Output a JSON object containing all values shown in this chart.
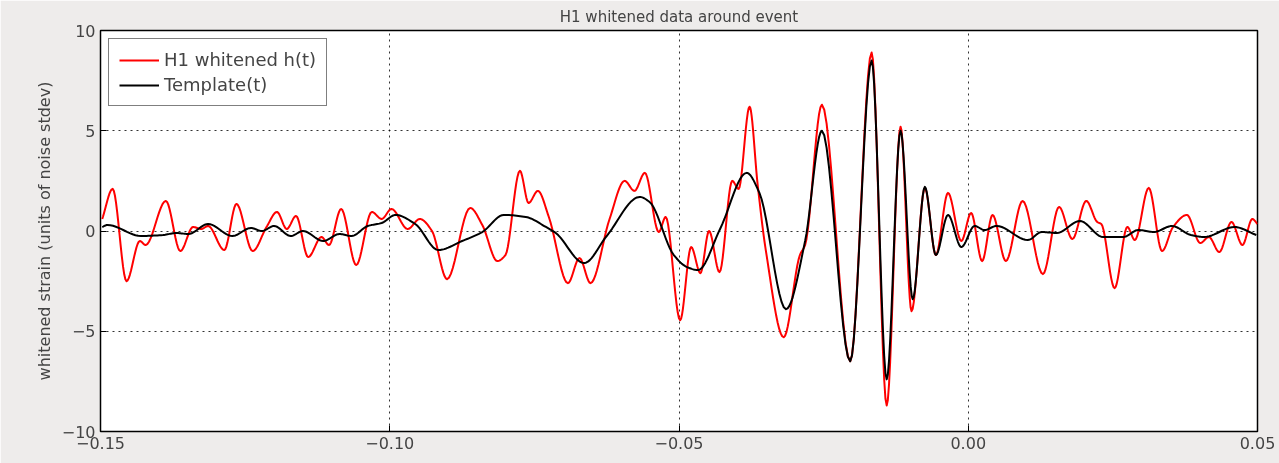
{
  "chart_data": {
    "type": "line",
    "title": "H1 whitened data around event",
    "ylabel": "whitened strain (units of noise stdev)",
    "xlim": [
      -0.15,
      0.05
    ],
    "ylim": [
      -10,
      10
    ],
    "xticks": [
      {
        "value": -0.15,
        "label": "−0.15"
      },
      {
        "value": -0.1,
        "label": "−0.10"
      },
      {
        "value": -0.05,
        "label": "−0.05"
      },
      {
        "value": 0,
        "label": "0.00"
      },
      {
        "value": 0.05,
        "label": "0.05"
      }
    ],
    "yticks": [
      {
        "value": -10,
        "label": "−10"
      },
      {
        "value": -5,
        "label": "−5"
      },
      0,
      5,
      10
    ],
    "grid": true,
    "legend": "top left",
    "line_style": "solid",
    "series": [
      {
        "name": "H1 whitened h(t)",
        "color": "#ff0000",
        "x": [
          -0.1497,
          -0.1479,
          -0.1455,
          -0.1432,
          -0.1422,
          -0.1387,
          -0.1362,
          -0.134,
          -0.1326,
          -0.1314,
          -0.1286,
          -0.1265,
          -0.1237,
          -0.1213,
          -0.1195,
          -0.1178,
          -0.1162,
          -0.1141,
          -0.1118,
          -0.1105,
          -0.1084,
          -0.1058,
          -0.1031,
          -0.1014,
          -0.0997,
          -0.0969,
          -0.0948,
          -0.0927,
          -0.0901,
          -0.0861,
          -0.084,
          -0.0814,
          -0.08,
          -0.0775,
          -0.076,
          -0.0744,
          -0.0725,
          -0.0692,
          -0.0672,
          -0.0653,
          -0.062,
          -0.0594,
          -0.0577,
          -0.0559,
          -0.0535,
          -0.0523,
          -0.0498,
          -0.0479,
          -0.0463,
          -0.0448,
          -0.043,
          -0.0408,
          -0.0397,
          -0.0378,
          -0.0364,
          -0.035,
          -0.0319,
          -0.0291,
          -0.0282,
          -0.0253,
          -0.0204,
          -0.0167,
          -0.0141,
          -0.0117,
          -0.0098,
          -0.0075,
          -0.0056,
          -0.0035,
          -0.0012,
          0.0005,
          0.0024,
          0.0042,
          0.0065,
          0.0094,
          0.0129,
          0.0157,
          0.018,
          0.0204,
          0.0223,
          0.023,
          0.0253,
          0.0275,
          0.0288,
          0.0312,
          0.0335,
          0.0354,
          0.0378,
          0.0401,
          0.0416,
          0.0434,
          0.0455,
          0.0474,
          0.0491,
          0.05
        ],
        "values": [
          0.6,
          2.1,
          -2.5,
          -0.5,
          -0.7,
          1.5,
          -1.0,
          0.2,
          0.1,
          0.25,
          -0.95,
          1.35,
          -1.0,
          0.2,
          0.95,
          0.1,
          0.75,
          -1.3,
          -0.3,
          -0.7,
          1.1,
          -1.7,
          0.95,
          0.6,
          1.1,
          0.1,
          0.6,
          0.0,
          -2.4,
          1.15,
          0.3,
          -1.5,
          -1.2,
          3.0,
          1.4,
          2.0,
          0.7,
          -2.6,
          -1.35,
          -2.6,
          0.6,
          2.5,
          2.0,
          2.9,
          -0.05,
          0.7,
          -4.45,
          -0.8,
          -2.1,
          0.0,
          -2.05,
          2.5,
          2.1,
          6.2,
          2.3,
          -0.95,
          -5.3,
          -1.2,
          -0.7,
          6.3,
          -6.5,
          8.9,
          -8.7,
          5.2,
          -4.0,
          2.15,
          -1.2,
          1.9,
          -0.5,
          0.9,
          -1.5,
          0.8,
          -1.5,
          1.5,
          -2.15,
          1.2,
          -0.4,
          1.5,
          0.45,
          0.35,
          -2.85,
          0.2,
          -0.45,
          2.15,
          -1.0,
          0.2,
          0.8,
          -0.6,
          -0.3,
          -1.05,
          0.45,
          -0.7,
          0.6,
          0.35
        ]
      },
      {
        "name": "Template(t)",
        "color": "#000000",
        "x": [
          -0.1497,
          -0.1488,
          -0.143,
          -0.1392,
          -0.1369,
          -0.1348,
          -0.1314,
          -0.1272,
          -0.124,
          -0.1221,
          -0.12,
          -0.1171,
          -0.115,
          -0.1115,
          -0.1087,
          -0.1066,
          -0.1038,
          -0.1014,
          -0.099,
          -0.0956,
          -0.0916,
          -0.0875,
          -0.084,
          -0.0803,
          -0.0765,
          -0.073,
          -0.0713,
          -0.0664,
          -0.0625,
          -0.0568,
          -0.0551,
          -0.0509,
          -0.0486,
          -0.0467,
          -0.0429,
          -0.0383,
          -0.0361,
          -0.0315,
          -0.0282,
          -0.0253,
          -0.0204,
          -0.0167,
          -0.0141,
          -0.0117,
          -0.0096,
          -0.0075,
          -0.0056,
          -0.0035,
          -0.0012,
          0.0011,
          0.0028,
          0.0049,
          0.0103,
          0.0127,
          0.0153,
          0.0193,
          0.0233,
          0.0268,
          0.0294,
          0.0321,
          0.0352,
          0.0385,
          0.0408,
          0.046,
          0.0498
        ],
        "values": [
          0.2,
          0.3,
          -0.25,
          -0.2,
          -0.1,
          -0.15,
          0.35,
          -0.25,
          0.15,
          0.0,
          0.25,
          -0.25,
          0.0,
          -0.5,
          -0.15,
          -0.25,
          0.25,
          0.4,
          0.8,
          0.35,
          -0.95,
          -0.5,
          -0.05,
          0.8,
          0.7,
          0.2,
          -0.1,
          -1.6,
          -0.25,
          1.7,
          1.45,
          -1.2,
          -1.8,
          -1.95,
          0.1,
          2.9,
          1.9,
          -3.9,
          -0.5,
          5.0,
          -6.5,
          8.5,
          -7.4,
          5.0,
          -3.4,
          2.2,
          -1.2,
          0.8,
          -0.8,
          0.25,
          0.05,
          0.25,
          -0.45,
          -0.05,
          -0.1,
          0.5,
          -0.3,
          -0.3,
          0.05,
          -0.05,
          0.25,
          -0.2,
          -0.3,
          0.2,
          -0.2
        ]
      }
    ]
  }
}
